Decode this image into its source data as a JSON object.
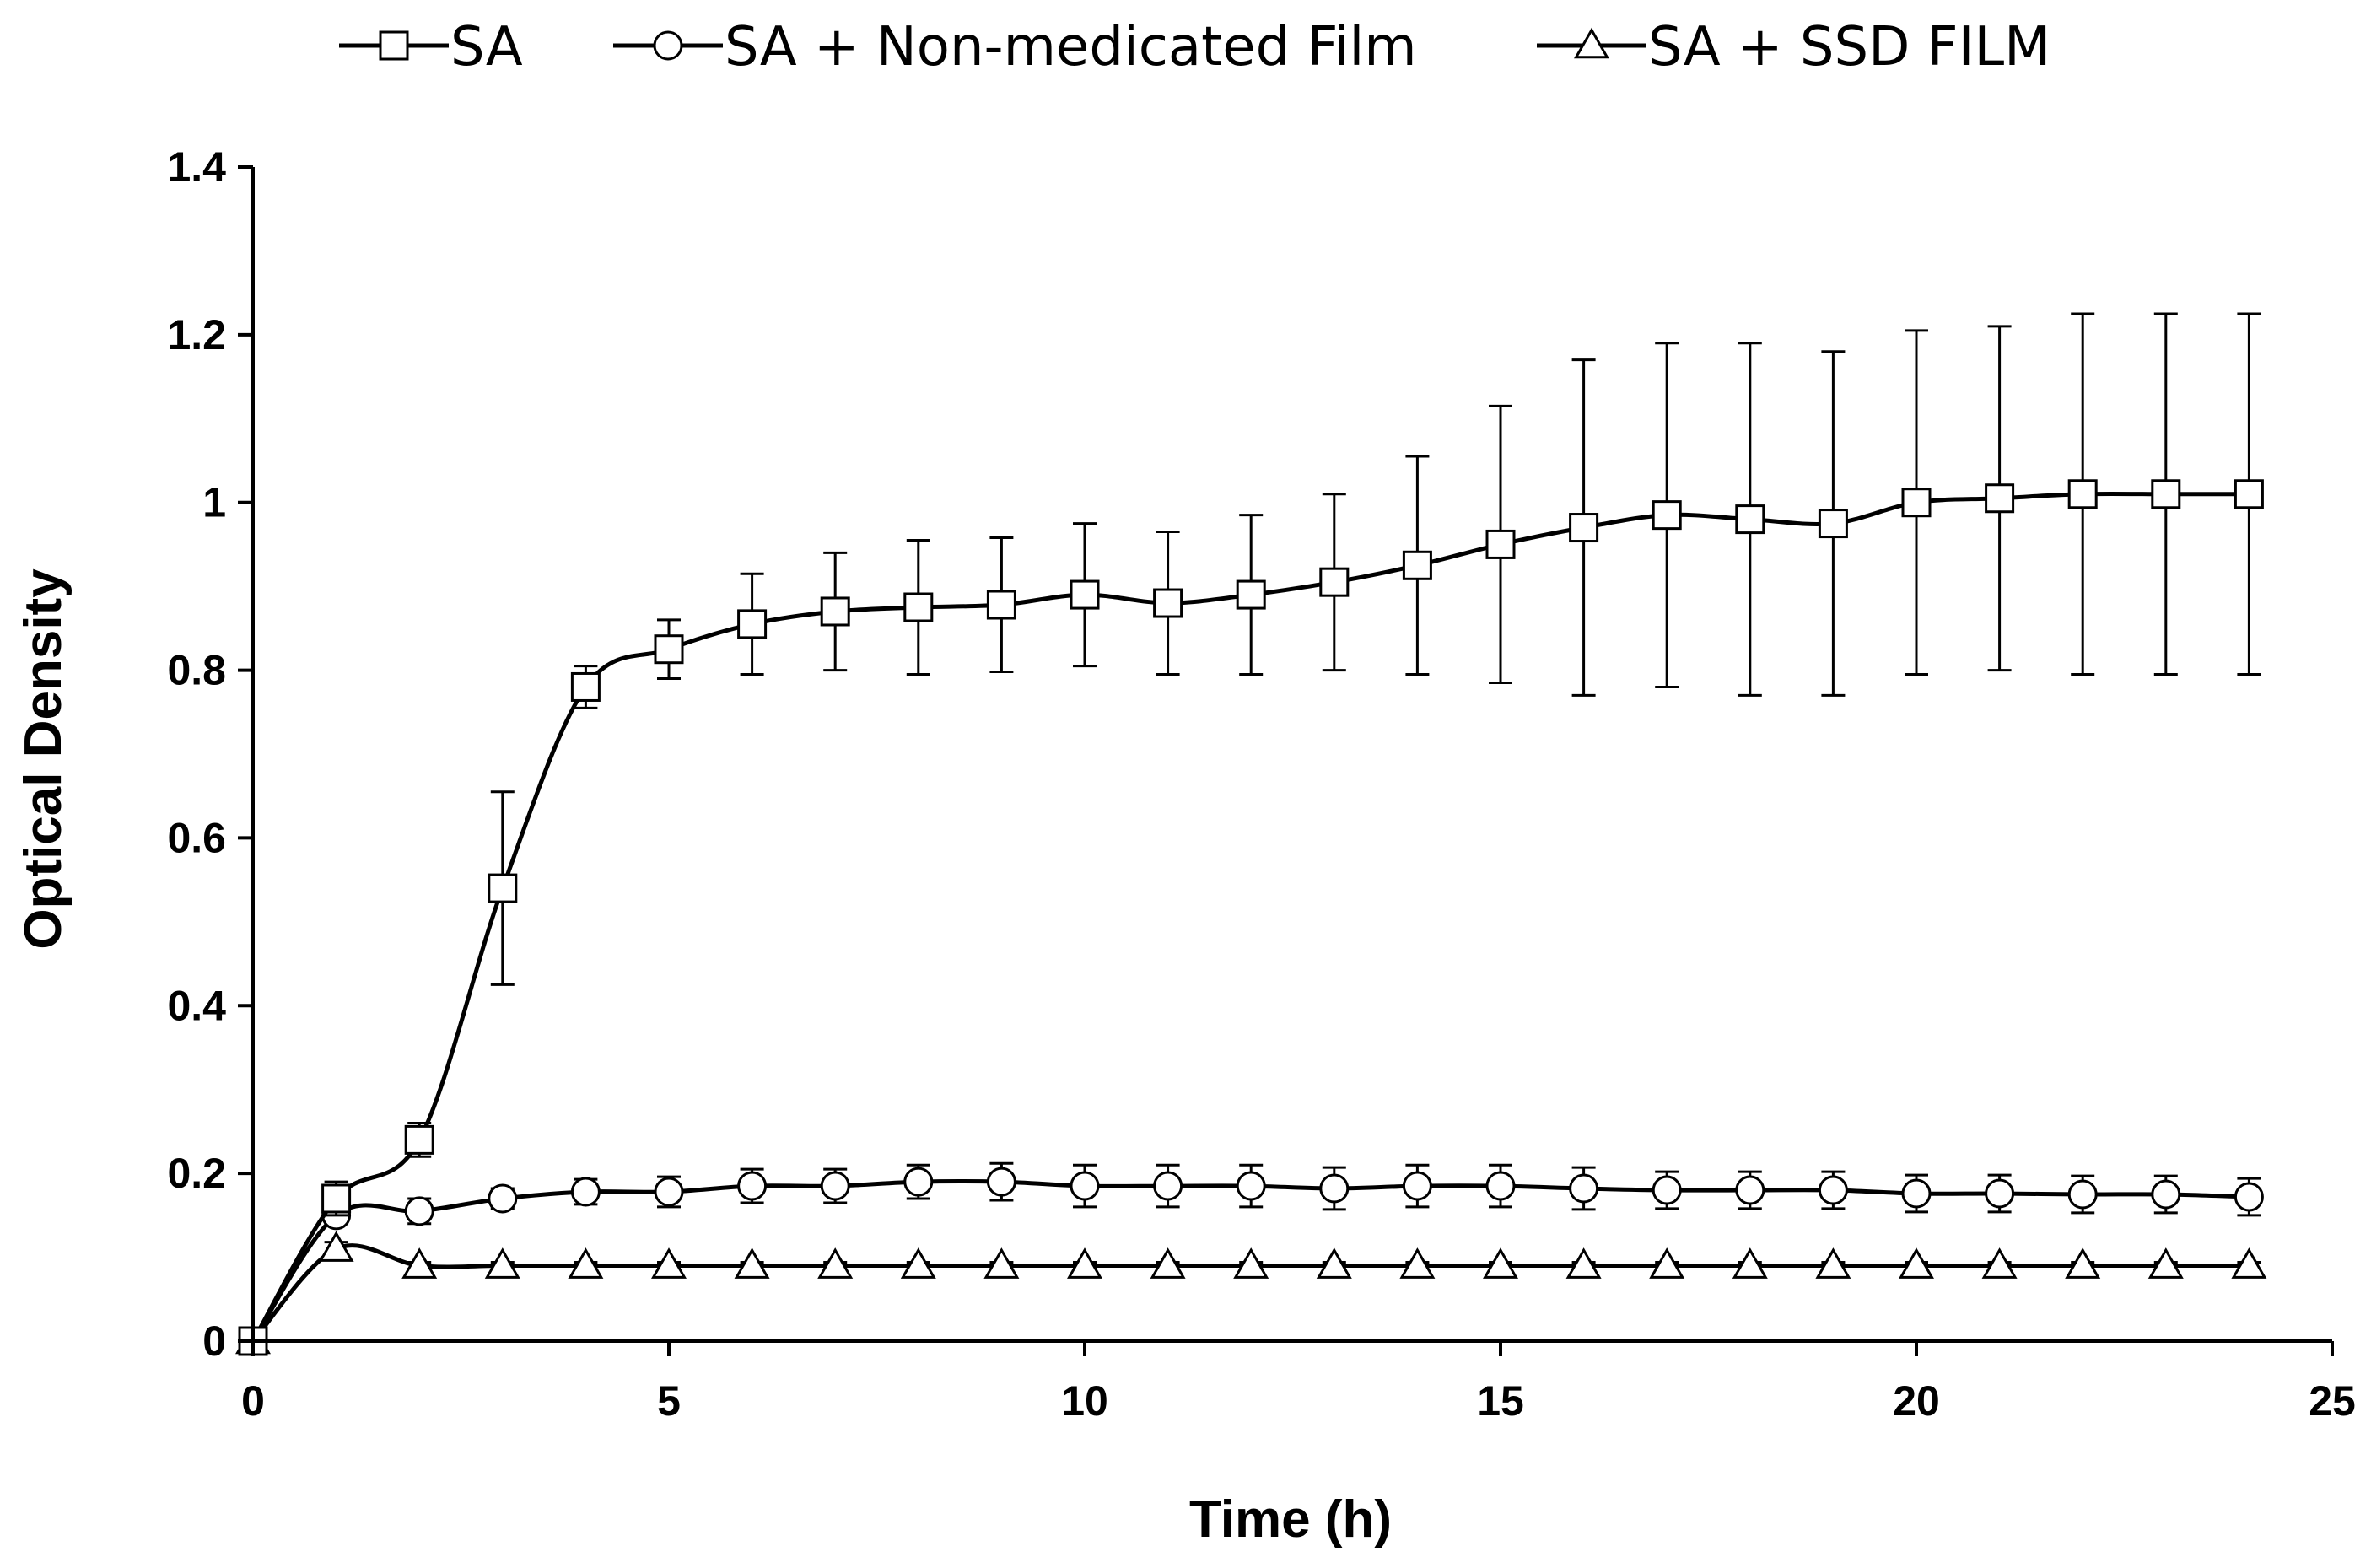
{
  "chart_data": {
    "type": "line",
    "title": "",
    "xlabel": "Time (h)",
    "ylabel": "Optical Density",
    "xlim": [
      0,
      25
    ],
    "ylim": [
      0,
      1.4
    ],
    "xticks": [
      0,
      5,
      10,
      15,
      20,
      25
    ],
    "yticks": [
      0,
      0.2,
      0.4,
      0.6,
      0.8,
      1,
      1.2,
      1.4
    ],
    "xtick_labels": [
      "0",
      "5",
      "10",
      "15",
      "20",
      "25"
    ],
    "ytick_labels": [
      "0",
      "0.2",
      "0.4",
      "0.6",
      "0.8",
      "1",
      "1.2",
      "1.4"
    ],
    "grid": false,
    "legend_position": "top",
    "x": [
      0,
      1,
      2,
      3,
      4,
      5,
      6,
      7,
      8,
      9,
      10,
      11,
      12,
      13,
      14,
      15,
      16,
      17,
      18,
      19,
      20,
      21,
      22,
      23,
      24
    ],
    "series": [
      {
        "name": "SA",
        "marker": "square",
        "values": [
          0.0,
          0.17,
          0.24,
          0.54,
          0.78,
          0.825,
          0.855,
          0.87,
          0.875,
          0.878,
          0.89,
          0.88,
          0.89,
          0.905,
          0.925,
          0.95,
          0.97,
          0.985,
          0.98,
          0.975,
          1.0,
          1.005,
          1.01,
          1.01,
          1.01
        ],
        "errors": [
          0.0,
          0.02,
          0.02,
          0.115,
          0.025,
          0.035,
          0.06,
          0.07,
          0.08,
          0.08,
          0.085,
          0.085,
          0.095,
          0.105,
          0.13,
          0.165,
          0.2,
          0.205,
          0.21,
          0.205,
          0.205,
          0.205,
          0.215,
          0.215,
          0.215
        ]
      },
      {
        "name": "SA + Non-medicated Film",
        "marker": "circle",
        "values": [
          0.0,
          0.15,
          0.155,
          0.17,
          0.178,
          0.178,
          0.185,
          0.185,
          0.19,
          0.19,
          0.185,
          0.185,
          0.185,
          0.182,
          0.185,
          0.185,
          0.182,
          0.18,
          0.18,
          0.18,
          0.176,
          0.176,
          0.175,
          0.175,
          0.172
        ],
        "errors": [
          0.0,
          0.01,
          0.015,
          0.012,
          0.015,
          0.018,
          0.02,
          0.02,
          0.02,
          0.022,
          0.025,
          0.025,
          0.025,
          0.025,
          0.025,
          0.025,
          0.025,
          0.022,
          0.022,
          0.022,
          0.022,
          0.022,
          0.022,
          0.022,
          0.022
        ]
      },
      {
        "name": "SA + SSD FILM",
        "marker": "triangle",
        "values": [
          0.0,
          0.11,
          0.09,
          0.09,
          0.09,
          0.09,
          0.09,
          0.09,
          0.09,
          0.09,
          0.09,
          0.09,
          0.09,
          0.09,
          0.09,
          0.09,
          0.09,
          0.09,
          0.09,
          0.09,
          0.09,
          0.09,
          0.09,
          0.09,
          0.09
        ],
        "errors": [
          0.0,
          0.008,
          0.004,
          0.004,
          0.004,
          0.004,
          0.004,
          0.004,
          0.004,
          0.004,
          0.004,
          0.004,
          0.004,
          0.004,
          0.004,
          0.004,
          0.004,
          0.004,
          0.004,
          0.004,
          0.004,
          0.004,
          0.004,
          0.004,
          0.004
        ]
      }
    ]
  }
}
